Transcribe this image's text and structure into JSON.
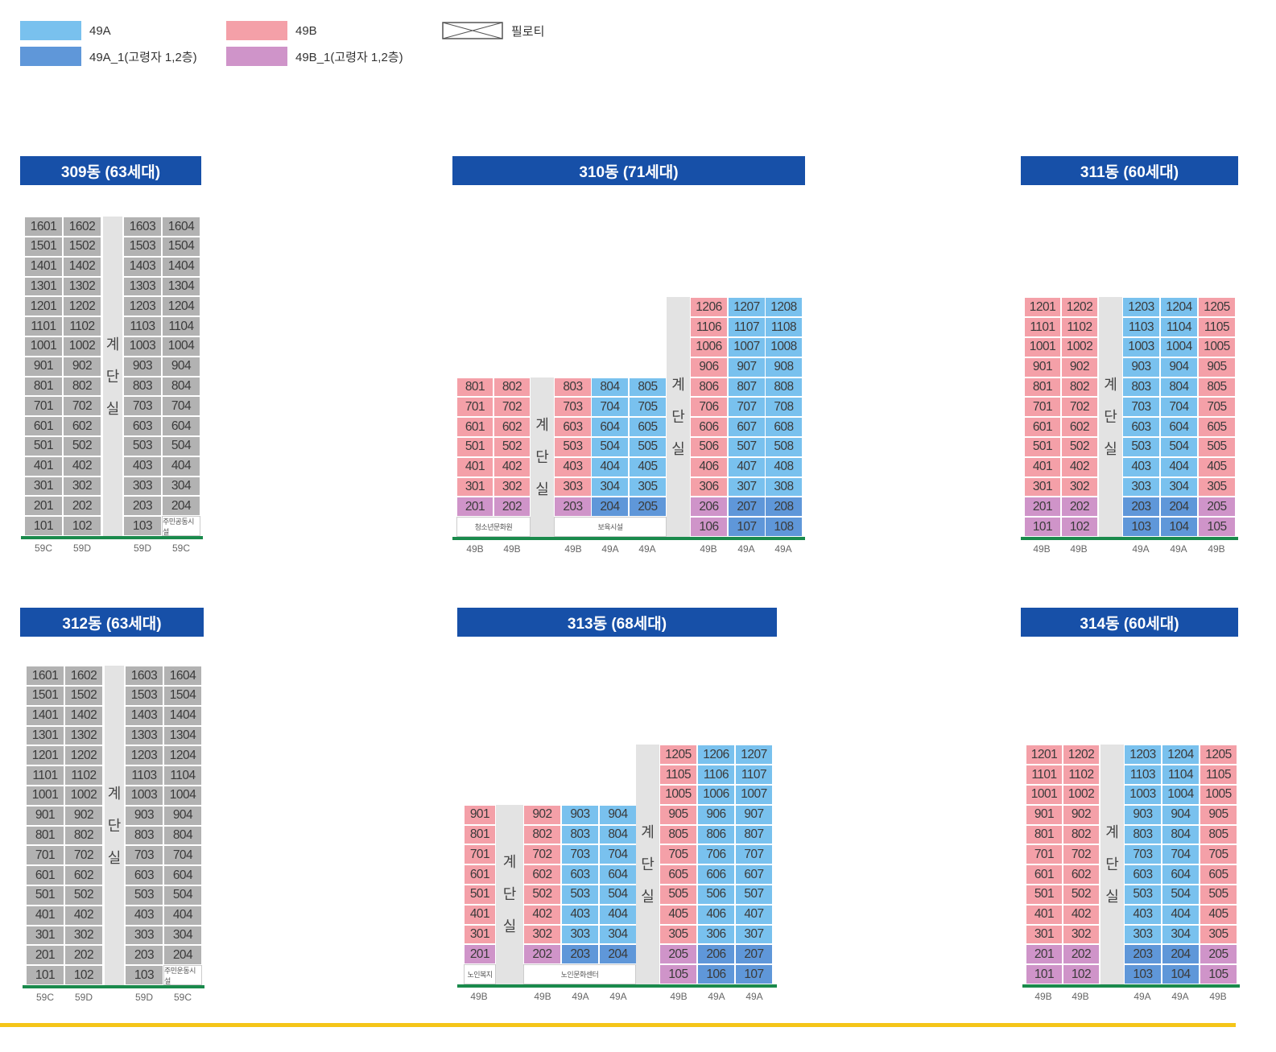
{
  "legend": {
    "a": {
      "label": "49A",
      "color": "#79c1ee"
    },
    "b": {
      "label": "49B",
      "color": "#f4a0a8"
    },
    "piloti": {
      "label": "필로티"
    },
    "a1": {
      "label": "49A_1(고령자 1,2층)",
      "color": "#5f97d9"
    },
    "b1": {
      "label": "49B_1(고령자 1,2층)",
      "color": "#cf94c9"
    }
  },
  "stair_label": [
    "계",
    "단",
    "실"
  ],
  "buildings": {
    "b309": {
      "title": "309동 (63세대)",
      "types": [
        "59C",
        "59D",
        "59D",
        "59C"
      ],
      "facility": "주민공동시설"
    },
    "b310": {
      "title": "310동 (71세대)",
      "types": [
        "49B",
        "49B",
        "49B",
        "49A",
        "49A",
        "49B",
        "49A",
        "49A"
      ],
      "facility1": "청소년문화원",
      "facility2": "보육시설"
    },
    "b311": {
      "title": "311동 (60세대)",
      "types": [
        "49B",
        "49B",
        "49A",
        "49A",
        "49B"
      ]
    },
    "b312": {
      "title": "312동 (63세대)",
      "types": [
        "59C",
        "59D",
        "59D",
        "59C"
      ],
      "facility": "주민운동시설"
    },
    "b313": {
      "title": "313동 (68세대)",
      "types": [
        "49B",
        "49B",
        "49A",
        "49A",
        "49B",
        "49A",
        "49A"
      ],
      "facility1": "노인복지",
      "facility2": "노인문화센터"
    },
    "b314": {
      "title": "314동 (60세대)",
      "types": [
        "49B",
        "49B",
        "49A",
        "49A",
        "49B"
      ]
    }
  }
}
